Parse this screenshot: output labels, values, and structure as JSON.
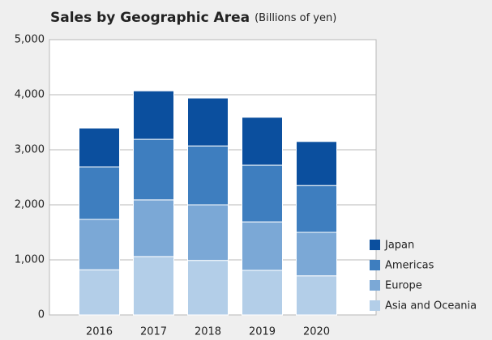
{
  "chart_data": {
    "type": "stacked_bar",
    "title": "Sales by Geographic Area",
    "subtitle": "(Billions of yen)",
    "categories": [
      "2016",
      "2017",
      "2018",
      "2019",
      "2020"
    ],
    "series": [
      {
        "name": "Asia and Oceania",
        "color": "#b3cee8",
        "values": [
          820,
          1060,
          990,
          810,
          710
        ]
      },
      {
        "name": "Europe",
        "color": "#7ba8d6",
        "values": [
          915,
          1030,
          1010,
          880,
          790
        ]
      },
      {
        "name": "Americas",
        "color": "#3e7ebf",
        "values": [
          955,
          1100,
          1070,
          1030,
          850
        ]
      },
      {
        "name": "Japan",
        "color": "#0b4f9e",
        "values": [
          705,
          880,
          870,
          870,
          800
        ]
      }
    ],
    "ylim": [
      0,
      5000
    ],
    "yticks": [
      0,
      {
        "value": 1000,
        "label": "1,000"
      },
      {
        "value": 2000,
        "label": "2,000"
      },
      {
        "value": 3000,
        "label": "3,000"
      },
      {
        "value": 4000,
        "label": "4,000"
      },
      {
        "value": 5000,
        "label": "5,000"
      }
    ],
    "grid": true,
    "legend": "right"
  }
}
